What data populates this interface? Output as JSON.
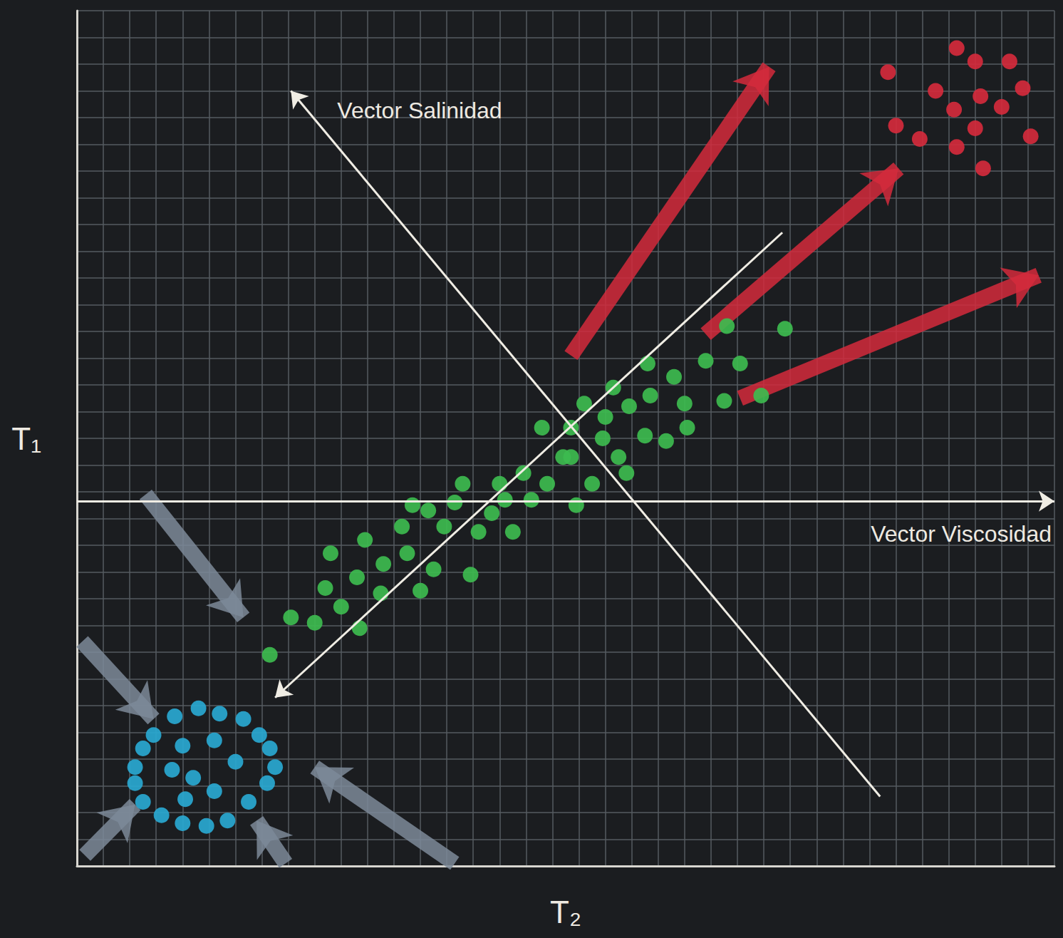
{
  "chart_data": {
    "type": "scatter",
    "x_label": "T₂",
    "y_label": "T₁",
    "xlim": [
      0,
      37
    ],
    "ylim": [
      0,
      32
    ],
    "xticks": [
      0,
      1,
      2,
      3,
      4,
      5,
      6,
      7,
      8,
      9,
      10,
      11,
      12,
      13,
      14,
      15,
      16,
      17,
      18,
      19,
      20,
      21,
      22,
      23,
      24,
      25,
      26,
      27,
      28,
      29,
      30,
      31,
      32,
      33,
      34,
      35,
      36,
      37
    ],
    "yticks": [
      0,
      1,
      2,
      3,
      4,
      5,
      6,
      7,
      8,
      9,
      10,
      11,
      12,
      13,
      14,
      15,
      16,
      17,
      18,
      19,
      20,
      21,
      22,
      23,
      24,
      25,
      26,
      27,
      28,
      29,
      30,
      31,
      32
    ],
    "grid": true,
    "tick_labels": false,
    "series": [
      {
        "color": "#29a8d1",
        "marker": "circle",
        "values": [
          [
            2.9,
            4.9
          ],
          [
            3.7,
            5.6
          ],
          [
            4.6,
            5.9
          ],
          [
            5.4,
            5.7
          ],
          [
            6.3,
            5.5
          ],
          [
            6.9,
            4.9
          ],
          [
            7.3,
            4.4
          ],
          [
            7.5,
            3.7
          ],
          [
            7.2,
            3.1
          ],
          [
            6.5,
            2.4
          ],
          [
            5.7,
            1.7
          ],
          [
            4.9,
            1.5
          ],
          [
            4.0,
            1.6
          ],
          [
            3.2,
            1.9
          ],
          [
            2.5,
            2.4
          ],
          [
            2.2,
            3.1
          ],
          [
            2.2,
            3.7
          ],
          [
            2.5,
            4.4
          ],
          [
            4.0,
            4.5
          ],
          [
            5.2,
            4.7
          ],
          [
            6.0,
            3.9
          ],
          [
            4.4,
            3.3
          ],
          [
            3.6,
            3.6
          ],
          [
            5.2,
            2.8
          ],
          [
            4.1,
            2.5
          ]
        ]
      },
      {
        "color": "#3dbb4f",
        "marker": "circle",
        "values": [
          [
            7.3,
            7.9
          ],
          [
            8.1,
            9.3
          ],
          [
            9.0,
            9.1
          ],
          [
            9.6,
            11.7
          ],
          [
            9.4,
            10.4
          ],
          [
            10.0,
            9.7
          ],
          [
            10.7,
            8.9
          ],
          [
            10.9,
            12.2
          ],
          [
            10.6,
            10.8
          ],
          [
            11.5,
            10.2
          ],
          [
            11.6,
            11.3
          ],
          [
            12.3,
            12.7
          ],
          [
            12.5,
            11.7
          ],
          [
            13.0,
            10.3
          ],
          [
            13.3,
            13.3
          ],
          [
            13.5,
            11.1
          ],
          [
            13.9,
            12.7
          ],
          [
            14.3,
            13.6
          ],
          [
            14.6,
            14.3
          ],
          [
            14.9,
            10.9
          ],
          [
            15.2,
            12.5
          ],
          [
            15.7,
            13.2
          ],
          [
            16.2,
            13.7
          ],
          [
            16.5,
            12.5
          ],
          [
            16.9,
            14.7
          ],
          [
            17.2,
            13.7
          ],
          [
            17.6,
            16.4
          ],
          [
            17.8,
            14.3
          ],
          [
            18.4,
            15.3
          ],
          [
            18.7,
            16.4
          ],
          [
            18.9,
            13.5
          ],
          [
            19.2,
            17.3
          ],
          [
            19.5,
            14.3
          ],
          [
            19.9,
            16.0
          ],
          [
            20.0,
            16.8
          ],
          [
            20.3,
            17.9
          ],
          [
            20.5,
            15.3
          ],
          [
            20.8,
            14.7
          ],
          [
            20.9,
            17.2
          ],
          [
            21.5,
            16.1
          ],
          [
            21.7,
            17.6
          ],
          [
            22.3,
            15.9
          ],
          [
            22.6,
            18.3
          ],
          [
            23.0,
            17.3
          ],
          [
            23.1,
            16.4
          ],
          [
            23.8,
            18.9
          ],
          [
            24.5,
            17.4
          ],
          [
            24.6,
            20.2
          ],
          [
            25.1,
            18.8
          ],
          [
            25.9,
            17.6
          ],
          [
            26.8,
            20.1
          ],
          [
            21.6,
            18.8
          ],
          [
            18.7,
            15.3
          ],
          [
            16.0,
            14.3
          ],
          [
            12.7,
            13.5
          ]
        ]
      },
      {
        "color": "#d42a3c",
        "marker": "circle",
        "values": [
          [
            30.7,
            29.7
          ],
          [
            31.0,
            27.7
          ],
          [
            31.9,
            27.2
          ],
          [
            32.5,
            29.0
          ],
          [
            33.3,
            30.6
          ],
          [
            34.0,
            30.1
          ],
          [
            33.2,
            28.3
          ],
          [
            34.2,
            28.8
          ],
          [
            34.0,
            27.6
          ],
          [
            33.3,
            26.9
          ],
          [
            34.3,
            26.1
          ],
          [
            35.0,
            28.4
          ],
          [
            35.3,
            30.1
          ],
          [
            35.8,
            29.1
          ],
          [
            36.1,
            27.3
          ]
        ]
      }
    ],
    "vectors": [
      {
        "from": [
          18.7,
          19.1
        ],
        "to": [
          26.2,
          29.9
        ],
        "color": "#d42a3c",
        "line_style": "thick"
      },
      {
        "from": [
          23.8,
          19.9
        ],
        "to": [
          31.1,
          26.1
        ],
        "color": "#d42a3c",
        "line_style": "thick"
      },
      {
        "from": [
          25.1,
          17.5
        ],
        "to": [
          36.4,
          22.1
        ],
        "color": "#d42a3c",
        "line_style": "thick"
      },
      {
        "from": [
          2.6,
          13.9
        ],
        "to": [
          6.3,
          9.3
        ],
        "color": "#7d8a99",
        "line_style": "thick"
      },
      {
        "from": [
          0.2,
          8.4
        ],
        "to": [
          2.9,
          5.5
        ],
        "color": "#7d8a99",
        "line_style": "thick"
      },
      {
        "from": [
          0.3,
          0.4
        ],
        "to": [
          2.2,
          2.3
        ],
        "color": "#7d8a99",
        "line_style": "thick"
      },
      {
        "from": [
          14.3,
          0.1
        ],
        "to": [
          9.0,
          3.7
        ],
        "color": "#7d8a99",
        "line_style": "thick"
      },
      {
        "from": [
          7.9,
          0.1
        ],
        "to": [
          6.8,
          1.7
        ],
        "color": "#7d8a99",
        "line_style": "thick"
      },
      {
        "from": [
          26.7,
          23.7
        ],
        "to": [
          7.5,
          6.3
        ],
        "color": "#f0ede4",
        "line_style": "thin"
      },
      {
        "text": "Vector Salinidad",
        "from": [
          30.4,
          2.6
        ],
        "to": [
          8.1,
          29.0
        ],
        "color": "#f0ede4",
        "line_style": "thin"
      },
      {
        "text": "Vector Viscosidad",
        "from": [
          0,
          13.65
        ],
        "to": [
          37,
          13.65
        ],
        "color": "#f0ede4",
        "line_style": "thin"
      }
    ]
  }
}
